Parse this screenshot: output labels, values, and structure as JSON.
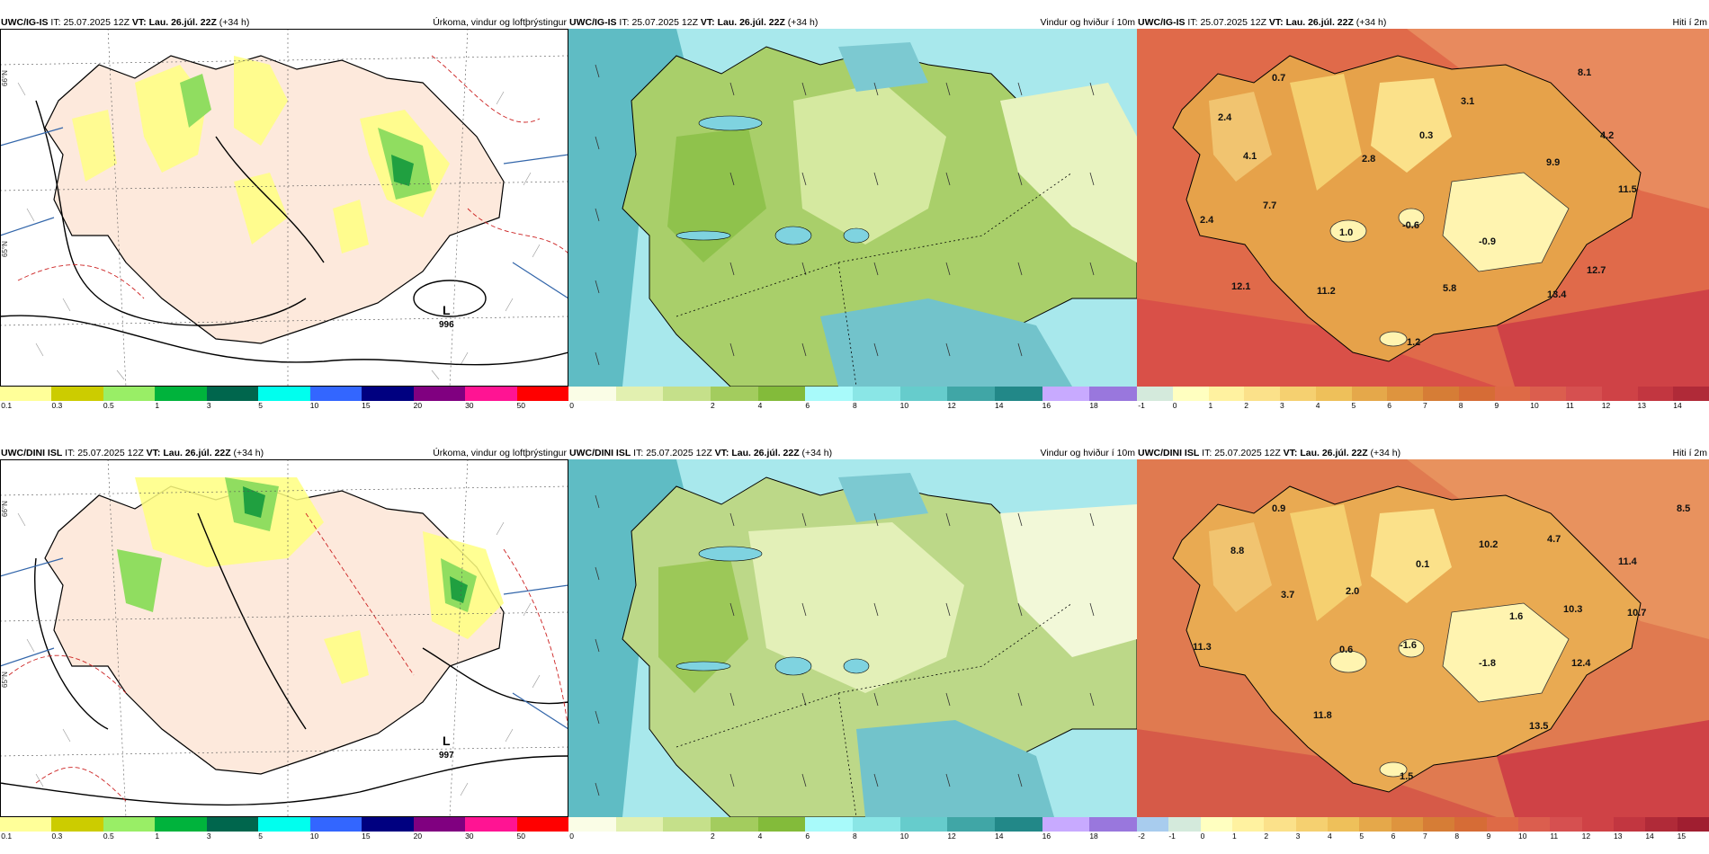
{
  "rows": [
    {
      "model": "UWC/IG-IS",
      "it_label": "IT:",
      "it_value": "25.07.2025 12Z",
      "vt_label": "VT:",
      "vt_value": "Lau. 26.júl. 22Z",
      "lead": "(+34 h)"
    },
    {
      "model": "UWC/DINI ISL",
      "it_label": "IT:",
      "it_value": "25.07.2025 12Z",
      "vt_label": "VT:",
      "vt_value": "Lau. 26.júl. 22Z",
      "lead": "(+34 h)"
    }
  ],
  "titles": {
    "precip": "Úrkoma, vindur og loftþrýstingur",
    "wind": "Vindur og hviður í 10m",
    "temp": "Hiti í 2m"
  },
  "pressure_low": {
    "letter": "L",
    "row1_value": "996",
    "row2_value": "997"
  },
  "temp_labels_row1": [
    "0.7",
    "8.1",
    "2.4",
    "3.1",
    "0.3",
    "4.2",
    "4.1",
    "2.8",
    "9.9",
    "11.5",
    "7.7",
    "2.4",
    "1.0",
    "-0.6",
    "-0.9",
    "12.7",
    "12.1",
    "11.2",
    "5.8",
    "13.4",
    "1.2"
  ],
  "temp_labels_row2": [
    "0.9",
    "8.5",
    "8.8",
    "10.2",
    "4.7",
    "0.1",
    "11.4",
    "3.7",
    "2.0",
    "10.3",
    "1.6",
    "10.7",
    "11.3",
    "0.6",
    "-1.6",
    "-1.8",
    "12.4",
    "11.8",
    "13.5",
    "1.5"
  ],
  "colorbars": {
    "precip": {
      "colors": [
        "#ffff99",
        "#cccc00",
        "#99ee66",
        "#00b33c",
        "#00664d",
        "#00ffee",
        "#3366ff",
        "#000080",
        "#800080",
        "#ff1493",
        "#ff0000"
      ],
      "ticks": [
        "0.1",
        "0.3",
        "0.5",
        "1",
        "3",
        "5",
        "10",
        "15",
        "20",
        "30",
        "50"
      ]
    },
    "wind": {
      "colors": [
        "#fafde6",
        "#e2f0b0",
        "#c5e08a",
        "#a3cc5e",
        "#83bb3a",
        "#a8fafa",
        "#8ae6e6",
        "#66cccc",
        "#40a6a6",
        "#228888",
        "#c8aaff",
        "#9977dd"
      ],
      "ticks": [
        "0",
        "2",
        "4",
        "6",
        "8",
        "10",
        "12",
        "14",
        "16",
        "18"
      ]
    },
    "temp_row1": {
      "colors": [
        "#d4eadc",
        "#ffffc0",
        "#fff2a0",
        "#fbe18a",
        "#f5d070",
        "#eec05a",
        "#e5a84a",
        "#de943e",
        "#d67d36",
        "#d66c36",
        "#de6a46",
        "#db5e4e",
        "#d65050",
        "#cf4246",
        "#c23640",
        "#b02a38"
      ],
      "ticks": [
        "-1",
        "0",
        "1",
        "2",
        "3",
        "4",
        "5",
        "6",
        "7",
        "8",
        "9",
        "10",
        "11",
        "12",
        "13",
        "14"
      ]
    },
    "temp_row2": {
      "colors": [
        "#a8ccee",
        "#d4eadc",
        "#ffffc0",
        "#fff2a0",
        "#fbe18a",
        "#f5d070",
        "#eec05a",
        "#e5a84a",
        "#de943e",
        "#d67d36",
        "#d66c36",
        "#de6a46",
        "#db5e4e",
        "#d65050",
        "#cf4246",
        "#c23640",
        "#b02a38",
        "#a01e30"
      ],
      "ticks": [
        "-2",
        "-1",
        "0",
        "1",
        "2",
        "3",
        "4",
        "5",
        "6",
        "7",
        "8",
        "9",
        "10",
        "11",
        "12",
        "13",
        "14",
        "15"
      ]
    }
  },
  "grid_labels": {
    "lat1": "66°N",
    "lat2": "65°N",
    "lat3": "64°N"
  }
}
